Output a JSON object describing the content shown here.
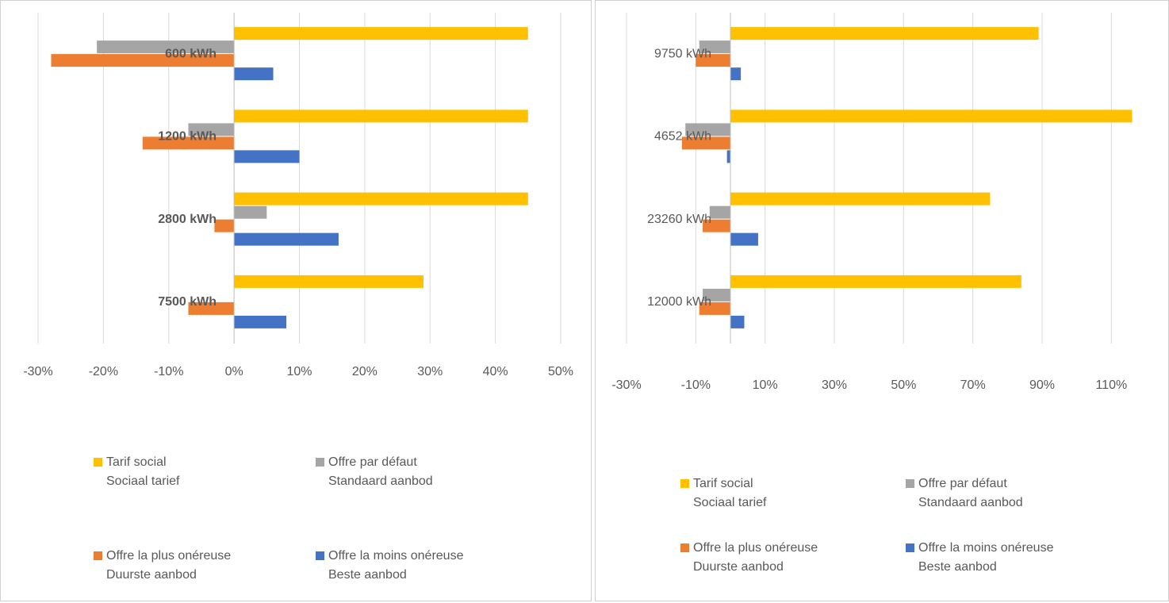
{
  "chart_data": [
    {
      "type": "bar",
      "orientation": "horizontal",
      "categories": [
        "600 kWh",
        "1200 kWh",
        "2800 kWh",
        "7500 kWh"
      ],
      "series": [
        {
          "name": "Tarif social\nSociaal tarief",
          "color": "#FFC000",
          "values": [
            45,
            45,
            45,
            29
          ]
        },
        {
          "name": "Offre par défaut\nStandaard aanbod",
          "color": "#A5A5A5",
          "values": [
            -21,
            -7,
            5,
            0
          ]
        },
        {
          "name": "Offre la plus onéreuse\nDuurste aanbod",
          "color": "#ED7D31",
          "values": [
            -28,
            -14,
            -3,
            -7
          ]
        },
        {
          "name": "Offre la moins onéreuse\nBeste aanbod",
          "color": "#4472C4",
          "values": [
            6,
            10,
            16,
            8
          ]
        }
      ],
      "xlim": [
        -30,
        50
      ],
      "xticks": [
        {
          "value": -30,
          "label": "-30%"
        },
        {
          "value": -20,
          "label": "-20%"
        },
        {
          "value": -10,
          "label": "-10%"
        },
        {
          "value": 0,
          "label": "0%"
        },
        {
          "value": 10,
          "label": "10%"
        },
        {
          "value": 20,
          "label": "20%"
        },
        {
          "value": 30,
          "label": "30%"
        },
        {
          "value": 40,
          "label": "40%"
        },
        {
          "value": 50,
          "label": "50%"
        }
      ],
      "grid": true,
      "bold_category_labels": true
    },
    {
      "type": "bar",
      "orientation": "horizontal",
      "categories": [
        "9750 kWh",
        "4652 kWh",
        "23260 kWh",
        "12000 kWh"
      ],
      "series": [
        {
          "name": "Tarif social\nSociaal tarief",
          "color": "#FFC000",
          "values": [
            89,
            116,
            75,
            84
          ]
        },
        {
          "name": "Offre par défaut\nStandaard aanbod",
          "color": "#A5A5A5",
          "values": [
            -9,
            -13,
            -6,
            -8
          ]
        },
        {
          "name": "Offre la plus onéreuse\nDuurste aanbod",
          "color": "#ED7D31",
          "values": [
            -10,
            -14,
            -8,
            -9
          ]
        },
        {
          "name": "Offre la moins onéreuse\nBeste aanbod",
          "color": "#4472C4",
          "values": [
            3,
            -1,
            8,
            4
          ]
        }
      ],
      "xlim": [
        -30,
        120
      ],
      "xticks": [
        {
          "value": -30,
          "label": "-30%"
        },
        {
          "value": -10,
          "label": "-10%"
        },
        {
          "value": 10,
          "label": "10%"
        },
        {
          "value": 30,
          "label": "30%"
        },
        {
          "value": 50,
          "label": "50%"
        },
        {
          "value": 70,
          "label": "70%"
        },
        {
          "value": 90,
          "label": "90%"
        },
        {
          "value": 110,
          "label": "110%"
        }
      ],
      "grid": true,
      "bold_category_labels": false
    }
  ]
}
